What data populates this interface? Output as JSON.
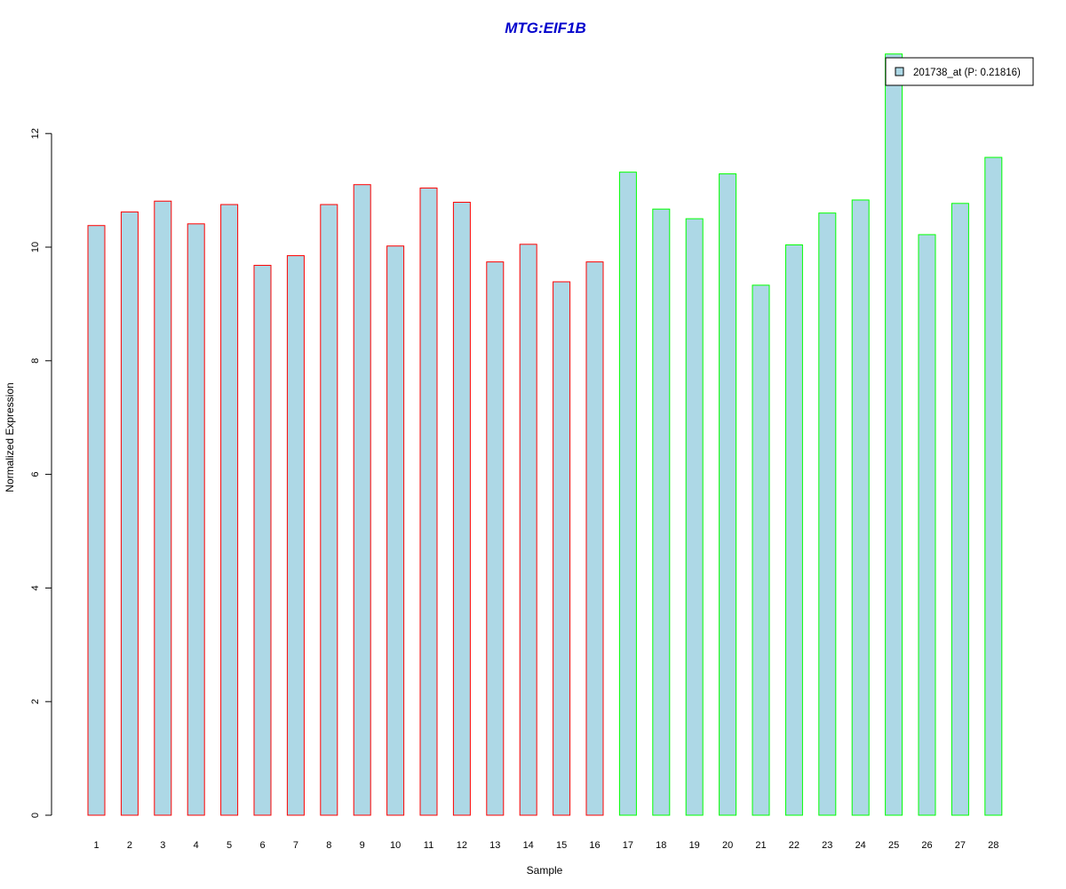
{
  "chart_data": {
    "type": "bar",
    "title": "MTG:EIF1B",
    "title_color": "#0000CC",
    "xlabel": "Sample",
    "ylabel": "Normalized Expression",
    "categories": [
      "1",
      "2",
      "3",
      "4",
      "5",
      "6",
      "7",
      "8",
      "9",
      "10",
      "11",
      "12",
      "13",
      "14",
      "15",
      "16",
      "17",
      "18",
      "19",
      "20",
      "21",
      "22",
      "23",
      "24",
      "25",
      "26",
      "27",
      "28"
    ],
    "values": [
      10.38,
      10.62,
      10.81,
      10.41,
      10.75,
      9.68,
      9.85,
      10.75,
      11.1,
      10.02,
      11.04,
      10.79,
      9.74,
      10.05,
      9.39,
      9.74,
      11.32,
      10.67,
      10.5,
      11.29,
      9.33,
      10.04,
      10.6,
      10.83,
      13.4,
      10.22,
      10.77,
      11.58
    ],
    "y_ticks": [
      "0",
      "2",
      "4",
      "6",
      "8",
      "10",
      "12"
    ],
    "ylim": [
      0,
      13.4
    ],
    "fill_color": "#ADD8E6",
    "group_border_colors": {
      "1-16": "#FF0000",
      "17-28": "#00FF00"
    },
    "legend": {
      "label": "201738_at (P: 0.21816)",
      "position": "top-right"
    },
    "grid": false
  }
}
